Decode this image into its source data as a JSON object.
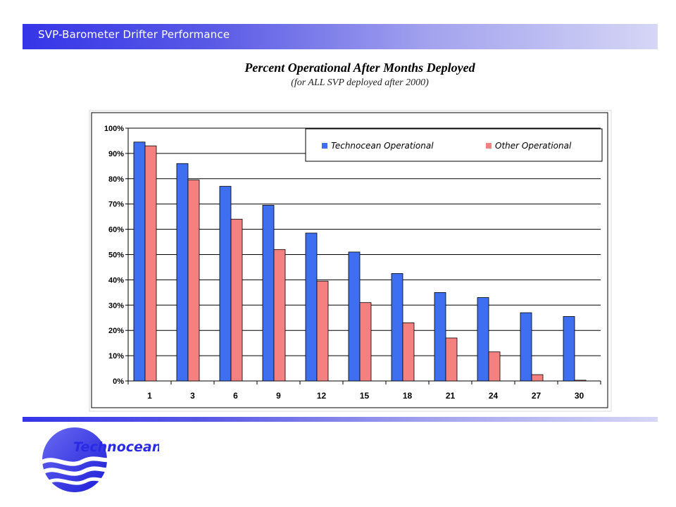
{
  "header": {
    "title": "SVP-Barometer Drifter Performance"
  },
  "chart_title": "Percent Operational After Months Deployed",
  "chart_subtitle": "(for ALL SVP deployed after 2000)",
  "logo": {
    "name": "technocean-logo",
    "text": "Technocean"
  },
  "colors": {
    "series1": "#3d6ff0",
    "series2": "#f48080",
    "header_start": "#3535e8",
    "header_end": "#d6d6f6"
  },
  "chart_data": {
    "type": "bar",
    "title": "",
    "xlabel": "",
    "ylabel": "",
    "categories": [
      "1",
      "3",
      "6",
      "9",
      "12",
      "15",
      "18",
      "21",
      "24",
      "27",
      "30"
    ],
    "series": [
      {
        "name": "Technocean Operational",
        "values": [
          94.5,
          86,
          77,
          69.5,
          58.5,
          51,
          42.5,
          35,
          33,
          27,
          25.5
        ]
      },
      {
        "name": "Other Operational",
        "values": [
          93,
          79.5,
          64,
          52,
          39.5,
          31,
          23,
          17,
          11.5,
          2.5,
          0.3
        ]
      }
    ],
    "ylim": [
      0,
      100
    ],
    "yticks": [
      "0%",
      "10%",
      "20%",
      "30%",
      "40%",
      "50%",
      "60%",
      "70%",
      "80%",
      "90%",
      "100%"
    ],
    "grid": true,
    "legend_position": "top-right"
  }
}
